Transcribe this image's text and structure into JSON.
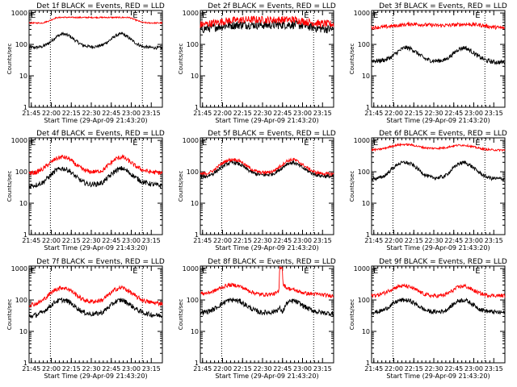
{
  "figure": {
    "start_time_label": "Start Time (29-Apr-09 21:43:20)",
    "ylabel": "Counts/sec",
    "x_ticks": [
      "21:45",
      "22:00",
      "22:15",
      "22:30",
      "22:45",
      "23:00",
      "23:15"
    ],
    "y_ticks": [
      "1",
      "10",
      "100",
      "1000"
    ],
    "marker_left": "E",
    "marker_right": "E",
    "colors": {
      "events": "#000000",
      "lld": "#ff0000",
      "background": "#ffffff"
    }
  },
  "chart_data": [
    {
      "type": "line",
      "title": "Det 1f BLACK = Events, RED = LLD",
      "xlabel": "Start Time (29-Apr-09 21:43:20)",
      "ylabel": "Counts/sec",
      "x_unit": "minutes after 21:43:20",
      "xlim": [
        0,
        100
      ],
      "ylim": [
        1,
        1200
      ],
      "yscale": "log",
      "vlines": [
        16,
        85
      ],
      "series": [
        {
          "name": "Events",
          "color": "#000000",
          "x": [
            0,
            5,
            10,
            15,
            20,
            25,
            30,
            35,
            40,
            45,
            50,
            55,
            60,
            65,
            70,
            75,
            80,
            85,
            90,
            95,
            100
          ],
          "values": [
            80,
            80,
            85,
            110,
            170,
            220,
            190,
            130,
            95,
            85,
            85,
            95,
            130,
            190,
            220,
            160,
            110,
            85,
            80,
            78,
            78
          ],
          "noise": 0.05
        },
        {
          "name": "LLD",
          "color": "#ff0000",
          "x": [
            0,
            5,
            10,
            15,
            20,
            25,
            30,
            35,
            40,
            45,
            50,
            55,
            60,
            65,
            70,
            75,
            80,
            85,
            90,
            95,
            100
          ],
          "values": [
            480,
            480,
            480,
            560,
            700,
            730,
            720,
            720,
            720,
            720,
            720,
            720,
            720,
            720,
            720,
            720,
            600,
            500,
            480,
            480,
            480
          ],
          "noise": 0.02
        }
      ]
    },
    {
      "type": "line",
      "title": "Det 2f BLACK = Events, RED = LLD",
      "xlabel": "Start Time (29-Apr-09 21:43:20)",
      "ylabel": "Counts/sec",
      "x_unit": "minutes after 21:43:20",
      "xlim": [
        0,
        100
      ],
      "ylim": [
        1,
        1200
      ],
      "yscale": "log",
      "vlines": [
        16,
        85
      ],
      "series": [
        {
          "name": "Events",
          "color": "#000000",
          "x": [
            0,
            10,
            20,
            30,
            40,
            50,
            60,
            70,
            80,
            90,
            100
          ],
          "values": [
            300,
            350,
            400,
            420,
            420,
            410,
            420,
            430,
            380,
            320,
            300
          ],
          "noise": 0.14
        },
        {
          "name": "LLD",
          "color": "#ff0000",
          "x": [
            0,
            10,
            20,
            30,
            40,
            50,
            60,
            70,
            80,
            90,
            100
          ],
          "values": [
            420,
            480,
            560,
            600,
            610,
            600,
            610,
            610,
            520,
            460,
            440
          ],
          "noise": 0.12
        }
      ]
    },
    {
      "type": "line",
      "title": "Det 3f BLACK = Events, RED = LLD",
      "xlabel": "Start Time (29-Apr-09 21:43:20)",
      "ylabel": "Counts/sec",
      "x_unit": "minutes after 21:43:20",
      "xlim": [
        0,
        100
      ],
      "ylim": [
        1,
        1200
      ],
      "yscale": "log",
      "vlines": [
        16,
        85
      ],
      "series": [
        {
          "name": "Events",
          "color": "#000000",
          "x": [
            0,
            5,
            10,
            15,
            20,
            25,
            30,
            35,
            40,
            45,
            50,
            55,
            60,
            65,
            70,
            75,
            80,
            85,
            90,
            95,
            100
          ],
          "values": [
            30,
            30,
            32,
            40,
            60,
            80,
            72,
            50,
            35,
            30,
            30,
            32,
            45,
            70,
            80,
            60,
            42,
            32,
            28,
            27,
            27
          ],
          "noise": 0.07
        },
        {
          "name": "LLD",
          "color": "#ff0000",
          "x": [
            0,
            10,
            20,
            30,
            40,
            50,
            60,
            70,
            80,
            90,
            100
          ],
          "values": [
            340,
            360,
            400,
            450,
            420,
            400,
            410,
            440,
            420,
            360,
            330
          ],
          "noise": 0.06
        }
      ]
    },
    {
      "type": "line",
      "title": "Det 4f BLACK = Events, RED = LLD",
      "xlabel": "Start Time (29-Apr-09 21:43:20)",
      "ylabel": "Counts/sec",
      "x_unit": "minutes after 21:43:20",
      "xlim": [
        0,
        100
      ],
      "ylim": [
        1,
        1200
      ],
      "yscale": "log",
      "vlines": [
        16,
        85
      ],
      "series": [
        {
          "name": "Events",
          "color": "#000000",
          "x": [
            0,
            5,
            10,
            15,
            20,
            25,
            30,
            35,
            40,
            45,
            50,
            55,
            60,
            65,
            70,
            75,
            80,
            85,
            90,
            95,
            100
          ],
          "values": [
            35,
            38,
            45,
            70,
            110,
            130,
            110,
            70,
            48,
            40,
            40,
            45,
            70,
            110,
            130,
            95,
            65,
            48,
            42,
            38,
            36
          ],
          "noise": 0.08
        },
        {
          "name": "LLD",
          "color": "#ff0000",
          "x": [
            0,
            5,
            10,
            15,
            20,
            25,
            30,
            35,
            40,
            45,
            50,
            55,
            60,
            65,
            70,
            75,
            80,
            85,
            90,
            95,
            100
          ],
          "values": [
            90,
            95,
            120,
            180,
            260,
            300,
            260,
            170,
            120,
            100,
            100,
            110,
            170,
            260,
            300,
            220,
            150,
            115,
            100,
            95,
            92
          ],
          "noise": 0.07
        }
      ]
    },
    {
      "type": "line",
      "title": "Det 5f BLACK = Events, RED = LLD",
      "xlabel": "Start Time (29-Apr-09 21:43:20)",
      "ylabel": "Counts/sec",
      "x_unit": "minutes after 21:43:20",
      "xlim": [
        0,
        100
      ],
      "ylim": [
        1,
        1200
      ],
      "yscale": "log",
      "vlines": [
        16,
        85
      ],
      "series": [
        {
          "name": "Events",
          "color": "#000000",
          "x": [
            0,
            5,
            10,
            15,
            20,
            25,
            30,
            35,
            40,
            45,
            50,
            55,
            60,
            65,
            70,
            75,
            80,
            85,
            90,
            95,
            100
          ],
          "values": [
            70,
            72,
            90,
            130,
            180,
            200,
            170,
            120,
            90,
            80,
            80,
            88,
            120,
            180,
            200,
            150,
            110,
            85,
            75,
            72,
            70
          ],
          "noise": 0.06
        },
        {
          "name": "LLD",
          "color": "#ff0000",
          "x": [
            0,
            5,
            10,
            15,
            20,
            25,
            30,
            35,
            40,
            45,
            50,
            55,
            60,
            65,
            70,
            75,
            80,
            85,
            90,
            95,
            100
          ],
          "values": [
            85,
            88,
            110,
            170,
            230,
            250,
            220,
            150,
            110,
            95,
            95,
            105,
            150,
            220,
            250,
            190,
            135,
            100,
            90,
            86,
            85
          ],
          "noise": 0.05
        }
      ]
    },
    {
      "type": "line",
      "title": "Det 6f BLACK = Events, RED = LLD",
      "xlabel": "Start Time (29-Apr-09 21:43:20)",
      "ylabel": "Counts/sec",
      "x_unit": "minutes after 21:43:20",
      "xlim": [
        0,
        100
      ],
      "ylim": [
        1,
        1200
      ],
      "yscale": "log",
      "vlines": [
        16,
        85
      ],
      "series": [
        {
          "name": "Events",
          "color": "#000000",
          "x": [
            0,
            5,
            10,
            15,
            20,
            25,
            30,
            35,
            40,
            45,
            50,
            55,
            60,
            65,
            70,
            75,
            80,
            85,
            90,
            95,
            100
          ],
          "values": [
            60,
            62,
            75,
            120,
            180,
            200,
            175,
            120,
            80,
            65,
            65,
            72,
            115,
            180,
            200,
            150,
            100,
            72,
            62,
            60,
            60
          ],
          "noise": 0.06
        },
        {
          "name": "LLD",
          "color": "#ff0000",
          "x": [
            0,
            5,
            10,
            15,
            20,
            25,
            30,
            35,
            40,
            45,
            50,
            55,
            60,
            65,
            70,
            75,
            80,
            85,
            90,
            95,
            100
          ],
          "values": [
            500,
            510,
            560,
            650,
            720,
            740,
            720,
            640,
            580,
            560,
            560,
            580,
            650,
            700,
            700,
            640,
            570,
            520,
            500,
            490,
            490
          ],
          "noise": 0.03
        }
      ]
    },
    {
      "type": "line",
      "title": "Det 7f BLACK = Events, RED = LLD",
      "xlabel": "Start Time (29-Apr-09 21:43:20)",
      "ylabel": "Counts/sec",
      "x_unit": "minutes after 21:43:20",
      "xlim": [
        0,
        100
      ],
      "ylim": [
        1,
        1200
      ],
      "yscale": "log",
      "vlines": [
        16,
        85
      ],
      "series": [
        {
          "name": "Events",
          "color": "#000000",
          "x": [
            0,
            5,
            10,
            15,
            20,
            25,
            30,
            35,
            40,
            45,
            50,
            55,
            60,
            65,
            70,
            75,
            80,
            85,
            90,
            95,
            100
          ],
          "values": [
            30,
            33,
            40,
            60,
            90,
            100,
            88,
            60,
            42,
            36,
            36,
            40,
            60,
            90,
            100,
            75,
            52,
            40,
            35,
            33,
            32
          ],
          "noise": 0.08
        },
        {
          "name": "LLD",
          "color": "#ff0000",
          "x": [
            0,
            5,
            10,
            15,
            20,
            25,
            30,
            35,
            40,
            45,
            50,
            55,
            60,
            65,
            70,
            75,
            80,
            85,
            90,
            95,
            100
          ],
          "values": [
            70,
            75,
            95,
            150,
            220,
            250,
            220,
            150,
            105,
            90,
            90,
            100,
            150,
            220,
            250,
            190,
            130,
            100,
            85,
            80,
            78
          ],
          "noise": 0.07
        }
      ]
    },
    {
      "type": "line",
      "title": "Det 8f BLACK = Events, RED = LLD",
      "xlabel": "Start Time (29-Apr-09 21:43:20)",
      "ylabel": "Counts/sec",
      "x_unit": "minutes after 21:43:20",
      "xlim": [
        0,
        100
      ],
      "ylim": [
        1,
        1200
      ],
      "yscale": "log",
      "vlines": [
        16,
        85
      ],
      "series": [
        {
          "name": "Events",
          "color": "#000000",
          "x": [
            0,
            5,
            10,
            15,
            20,
            25,
            30,
            35,
            40,
            45,
            50,
            55,
            60,
            61,
            62,
            65,
            70,
            75,
            80,
            85,
            90,
            95,
            100
          ],
          "values": [
            40,
            42,
            50,
            70,
            95,
            100,
            90,
            65,
            48,
            40,
            40,
            42,
            55,
            40,
            45,
            80,
            95,
            75,
            55,
            45,
            40,
            38,
            37
          ],
          "noise": 0.08
        },
        {
          "name": "LLD",
          "color": "#ff0000",
          "x": [
            0,
            5,
            10,
            15,
            20,
            25,
            30,
            35,
            40,
            45,
            50,
            55,
            59,
            59.5,
            61.5,
            62,
            65,
            70,
            75,
            80,
            85,
            90,
            95,
            100
          ],
          "values": [
            160,
            165,
            190,
            240,
            290,
            300,
            270,
            210,
            170,
            150,
            150,
            155,
            180,
            1100,
            1100,
            320,
            240,
            210,
            180,
            160,
            155,
            150,
            140,
            135
          ],
          "noise": 0.06
        }
      ]
    },
    {
      "type": "line",
      "title": "Det 9f BLACK = Events, RED = LLD",
      "xlabel": "Start Time (29-Apr-09 21:43:20)",
      "ylabel": "Counts/sec",
      "x_unit": "minutes after 21:43:20",
      "xlim": [
        0,
        100
      ],
      "ylim": [
        1,
        1200
      ],
      "yscale": "log",
      "vlines": [
        16,
        85
      ],
      "series": [
        {
          "name": "Events",
          "color": "#000000",
          "x": [
            0,
            5,
            10,
            15,
            20,
            25,
            30,
            35,
            40,
            45,
            50,
            55,
            60,
            65,
            70,
            75,
            80,
            85,
            90,
            95,
            100
          ],
          "values": [
            40,
            42,
            50,
            70,
            95,
            100,
            90,
            65,
            48,
            42,
            42,
            45,
            65,
            95,
            100,
            78,
            55,
            45,
            42,
            40,
            40
          ],
          "noise": 0.07
        },
        {
          "name": "LLD",
          "color": "#ff0000",
          "x": [
            0,
            5,
            10,
            15,
            20,
            25,
            30,
            35,
            40,
            45,
            50,
            55,
            60,
            65,
            70,
            75,
            80,
            85,
            90,
            95,
            100
          ],
          "values": [
            140,
            145,
            170,
            220,
            270,
            280,
            250,
            190,
            150,
            135,
            135,
            145,
            190,
            260,
            280,
            220,
            170,
            145,
            140,
            138,
            138
          ],
          "noise": 0.06
        }
      ]
    }
  ]
}
